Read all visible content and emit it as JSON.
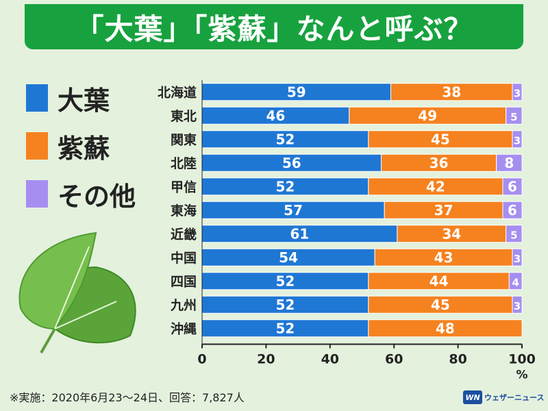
{
  "title": "「大葉」「紫蘇」なんと呼ぶ？",
  "chart_data": {
    "type": "bar",
    "orientation": "horizontal",
    "stacked": true,
    "categories": [
      "北海道",
      "東北",
      "関東",
      "北陸",
      "甲信",
      "東海",
      "近畿",
      "中国",
      "四国",
      "九州",
      "沖縄"
    ],
    "series": [
      {
        "name": "大葉",
        "color": "#1f77d4",
        "values": [
          59,
          46,
          52,
          56,
          52,
          57,
          61,
          54,
          52,
          52,
          52
        ]
      },
      {
        "name": "紫蘇",
        "color": "#f5821f",
        "values": [
          38,
          49,
          45,
          36,
          42,
          37,
          34,
          43,
          44,
          45,
          48
        ]
      },
      {
        "name": "その他",
        "color": "#a58ef0",
        "values": [
          3,
          5,
          3,
          8,
          6,
          6,
          5,
          3,
          4,
          3,
          0
        ]
      }
    ],
    "xlim": [
      0,
      100
    ],
    "xticks": [
      "0",
      "20",
      "40",
      "60",
      "80",
      "100"
    ],
    "xunit": "%",
    "legend_position": "left",
    "grid": false
  },
  "footnote": "※実施：2020年6月23〜24日、回答：7,827人",
  "brand": {
    "mark": "WN",
    "name": "ウェザーニュース"
  }
}
